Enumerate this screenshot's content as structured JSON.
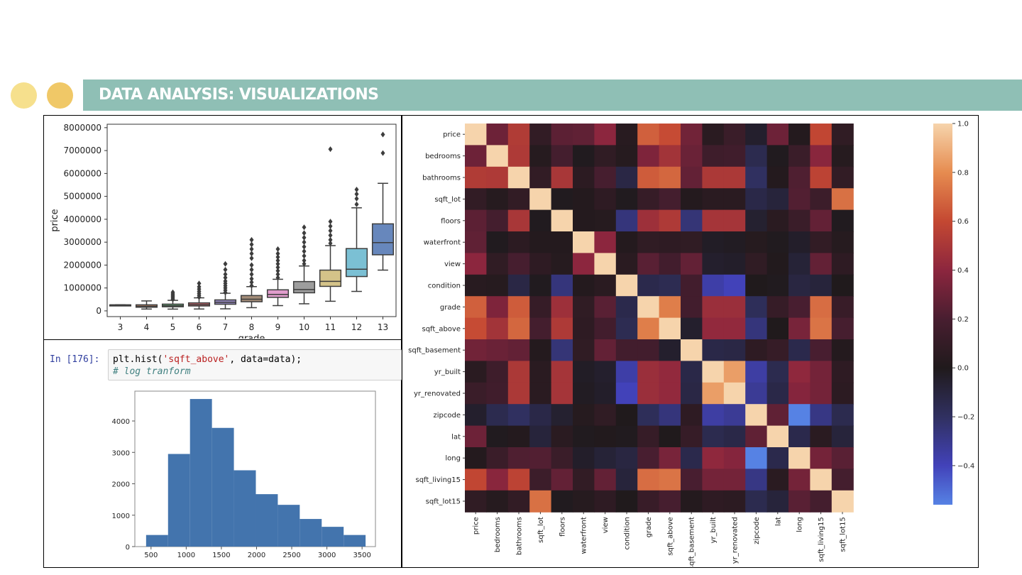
{
  "header": {
    "title": "DATA ANALYSIS: VISUALIZATIONS",
    "colors": {
      "banner": "#8fbfb5",
      "dot1": "#f6e08d",
      "dot2": "#f0c867"
    }
  },
  "notebook": {
    "prompt": "In [176]:",
    "code_parts": [
      "plt.hist(",
      "'sqft_above'",
      ", data=data);"
    ],
    "comment": "# log tranform"
  },
  "chart_data": [
    {
      "type": "box",
      "xlabel": "grade",
      "ylabel": "price",
      "categories": [
        "3",
        "4",
        "5",
        "6",
        "7",
        "8",
        "9",
        "10",
        "11",
        "12",
        "13"
      ],
      "yticks": [
        0,
        1000000,
        2000000,
        3000000,
        4000000,
        5000000,
        6000000,
        7000000,
        8000000
      ],
      "ylim": [
        -250000,
        8150000
      ],
      "boxes": [
        {
          "cat": "3",
          "min": 262000,
          "q1": 262000,
          "median": 262000,
          "q3": 262000,
          "max": 262000,
          "outliers": [],
          "color": "#4c72b0"
        },
        {
          "cat": "4",
          "min": 80000,
          "q1": 160000,
          "median": 205000,
          "q3": 265000,
          "max": 435000,
          "outliers": [],
          "color": "#dd8452"
        },
        {
          "cat": "5",
          "min": 78000,
          "q1": 180000,
          "median": 228000,
          "q3": 295000,
          "max": 460000,
          "outliers": [
            500000,
            560000,
            620000,
            680000,
            740000,
            810000
          ],
          "color": "#55a868"
        },
        {
          "cat": "6",
          "min": 82000,
          "q1": 215000,
          "median": 275000,
          "q3": 350000,
          "max": 570000,
          "outliers": [
            600000,
            680000,
            760000,
            850000,
            950000,
            1050000,
            1200000
          ],
          "color": "#c44e52"
        },
        {
          "cat": "7",
          "min": 90000,
          "q1": 290000,
          "median": 375000,
          "q3": 480000,
          "max": 770000,
          "outliers": [
            800000,
            900000,
            1000000,
            1100000,
            1200000,
            1300000,
            1450000,
            1600000,
            1800000,
            2050000
          ],
          "color": "#8172b3"
        },
        {
          "cat": "8",
          "min": 140000,
          "q1": 400000,
          "median": 510000,
          "q3": 670000,
          "max": 1060000,
          "outliers": [
            1100000,
            1250000,
            1400000,
            1600000,
            1800000,
            2000000,
            2300000,
            2500000,
            2700000,
            2900000,
            3100000
          ],
          "color": "#937860"
        },
        {
          "cat": "9",
          "min": 230000,
          "q1": 590000,
          "median": 720000,
          "q3": 920000,
          "max": 1380000,
          "outliers": [
            1450000,
            1600000,
            1750000,
            1900000,
            2050000,
            2200000,
            2350000,
            2500000,
            2700000
          ],
          "color": "#da8bc3"
        },
        {
          "cat": "10",
          "min": 310000,
          "q1": 790000,
          "median": 930000,
          "q3": 1280000,
          "max": 1960000,
          "outliers": [
            2050000,
            2200000,
            2400000,
            2600000,
            2800000,
            3000000,
            3200000,
            3400000,
            3650000
          ],
          "color": "#8c8c8c"
        },
        {
          "cat": "11",
          "min": 420000,
          "q1": 1070000,
          "median": 1290000,
          "q3": 1780000,
          "max": 2850000,
          "outliers": [
            2950000,
            3100000,
            3300000,
            3500000,
            3700000,
            3900000,
            7060000
          ],
          "color": "#ccb974"
        },
        {
          "cat": "12",
          "min": 850000,
          "q1": 1500000,
          "median": 1820000,
          "q3": 2720000,
          "max": 4500000,
          "outliers": [
            4650000,
            4900000,
            5100000,
            5300000
          ],
          "color": "#64b5cd"
        },
        {
          "cat": "13",
          "min": 1780000,
          "q1": 2450000,
          "median": 2980000,
          "q3": 3800000,
          "max": 5570000,
          "outliers": [
            6890000,
            7700000
          ],
          "color": "#4c72b0"
        }
      ]
    },
    {
      "type": "bar",
      "subtype": "histogram",
      "xticks": [
        500,
        1000,
        1500,
        2000,
        2500,
        3000,
        3500
      ],
      "yticks": [
        0,
        1000,
        2000,
        3000,
        4000
      ],
      "xlim": [
        270,
        3690
      ],
      "ylim": [
        0,
        4950
      ],
      "bins": [
        {
          "x0": 430,
          "x1": 742,
          "count": 370
        },
        {
          "x0": 742,
          "x1": 1054,
          "count": 2950
        },
        {
          "x0": 1054,
          "x1": 1366,
          "count": 4700
        },
        {
          "x0": 1366,
          "x1": 1678,
          "count": 3780
        },
        {
          "x0": 1678,
          "x1": 1990,
          "count": 2430
        },
        {
          "x0": 1990,
          "x1": 2302,
          "count": 1670
        },
        {
          "x0": 2302,
          "x1": 2614,
          "count": 1330
        },
        {
          "x0": 2614,
          "x1": 2926,
          "count": 880
        },
        {
          "x0": 2926,
          "x1": 3238,
          "count": 630
        },
        {
          "x0": 3238,
          "x1": 3550,
          "count": 370
        }
      ],
      "color": "#4374ad"
    },
    {
      "type": "heatmap",
      "labels": [
        "price",
        "bedrooms",
        "bathrooms",
        "sqft_lot",
        "floors",
        "waterfront",
        "view",
        "condition",
        "grade",
        "sqft_above",
        "sqft_basement",
        "yr_built",
        "yr_renovated",
        "zipcode",
        "lat",
        "long",
        "sqft_living15",
        "sqft_lot15"
      ],
      "colorbar_ticks": [
        1.0,
        0.8,
        0.6,
        0.4,
        0.2,
        0.0,
        -0.2,
        -0.4
      ],
      "colorbar_range": [
        -0.56,
        1.0
      ],
      "matrix": [
        [
          1,
          0.31,
          0.53,
          0.09,
          0.26,
          0.27,
          0.4,
          0.04,
          0.67,
          0.61,
          0.32,
          0.05,
          0.13,
          -0.05,
          0.31,
          0.02,
          0.59,
          0.08
        ],
        [
          0.31,
          1,
          0.52,
          0.03,
          0.18,
          -0.01,
          0.08,
          0.03,
          0.36,
          0.48,
          0.3,
          0.15,
          0.16,
          -0.15,
          -0.01,
          0.13,
          0.39,
          0.03
        ],
        [
          0.53,
          0.52,
          1,
          0.09,
          0.5,
          0.06,
          0.19,
          -0.12,
          0.66,
          0.69,
          0.28,
          0.51,
          0.51,
          -0.2,
          0.02,
          0.22,
          0.57,
          0.09
        ],
        [
          0.09,
          0.03,
          0.09,
          1,
          -0.01,
          0.02,
          0.07,
          -0.01,
          0.11,
          0.18,
          0.02,
          0.05,
          0.05,
          -0.13,
          -0.09,
          0.23,
          0.14,
          0.72
        ],
        [
          0.26,
          0.18,
          0.5,
          -0.01,
          1,
          0.02,
          0.03,
          -0.26,
          0.46,
          0.52,
          -0.25,
          0.49,
          0.49,
          -0.06,
          0.05,
          0.13,
          0.28,
          -0.01
        ],
        [
          0.27,
          -0.01,
          0.06,
          0.02,
          0.02,
          1,
          0.4,
          0.02,
          0.08,
          0.07,
          0.08,
          -0.03,
          -0.02,
          0.03,
          -0.01,
          -0.04,
          0.09,
          0.03
        ],
        [
          0.4,
          0.08,
          0.19,
          0.07,
          0.03,
          0.4,
          1,
          0.05,
          0.25,
          0.17,
          0.28,
          -0.05,
          -0.04,
          0.08,
          0.01,
          -0.08,
          0.28,
          0.07
        ],
        [
          0.04,
          0.03,
          -0.12,
          -0.01,
          -0.26,
          0.02,
          0.05,
          1,
          -0.14,
          -0.16,
          0.17,
          -0.36,
          -0.4,
          0.0,
          -0.01,
          -0.11,
          -0.09,
          -0.0
        ],
        [
          0.67,
          0.36,
          0.66,
          0.11,
          0.46,
          0.08,
          0.25,
          -0.14,
          1,
          0.76,
          0.17,
          0.45,
          0.45,
          -0.18,
          0.11,
          0.2,
          0.71,
          0.12
        ],
        [
          0.61,
          0.48,
          0.69,
          0.18,
          0.52,
          0.07,
          0.17,
          -0.16,
          0.76,
          1,
          -0.05,
          0.42,
          0.42,
          -0.26,
          -0.0,
          0.34,
          0.73,
          0.19
        ],
        [
          0.32,
          0.3,
          0.28,
          0.02,
          -0.25,
          0.08,
          0.28,
          0.17,
          0.17,
          -0.05,
          1,
          -0.13,
          -0.12,
          0.07,
          0.11,
          -0.14,
          0.2,
          0.02
        ],
        [
          0.05,
          0.15,
          0.51,
          0.05,
          0.49,
          -0.03,
          -0.05,
          -0.36,
          0.45,
          0.42,
          -0.13,
          1,
          0.85,
          -0.35,
          -0.15,
          0.41,
          0.33,
          0.07
        ],
        [
          0.13,
          0.16,
          0.51,
          0.05,
          0.49,
          -0.02,
          -0.04,
          -0.4,
          0.45,
          0.42,
          -0.12,
          0.85,
          1,
          -0.32,
          -0.13,
          0.38,
          0.33,
          0.06
        ],
        [
          -0.05,
          -0.15,
          -0.2,
          -0.13,
          -0.06,
          0.03,
          0.08,
          0.0,
          -0.18,
          -0.26,
          0.07,
          -0.35,
          -0.32,
          1,
          0.27,
          -0.56,
          -0.28,
          -0.15
        ],
        [
          0.31,
          -0.01,
          0.02,
          -0.09,
          0.05,
          -0.01,
          0.01,
          -0.01,
          0.11,
          -0.0,
          0.11,
          -0.15,
          -0.13,
          0.27,
          1,
          -0.14,
          0.05,
          -0.09
        ],
        [
          0.02,
          0.13,
          0.22,
          0.23,
          0.13,
          -0.04,
          -0.08,
          -0.11,
          0.2,
          0.34,
          -0.14,
          0.41,
          0.38,
          -0.56,
          -0.14,
          1,
          0.33,
          0.25
        ],
        [
          0.59,
          0.39,
          0.57,
          0.14,
          0.28,
          0.09,
          0.28,
          -0.09,
          0.71,
          0.73,
          0.2,
          0.33,
          0.33,
          -0.28,
          0.05,
          0.33,
          1,
          0.18
        ],
        [
          0.08,
          0.03,
          0.09,
          0.72,
          -0.01,
          0.03,
          0.07,
          -0.0,
          0.12,
          0.19,
          0.02,
          0.07,
          0.06,
          -0.15,
          -0.09,
          0.25,
          0.18,
          1
        ]
      ]
    }
  ]
}
